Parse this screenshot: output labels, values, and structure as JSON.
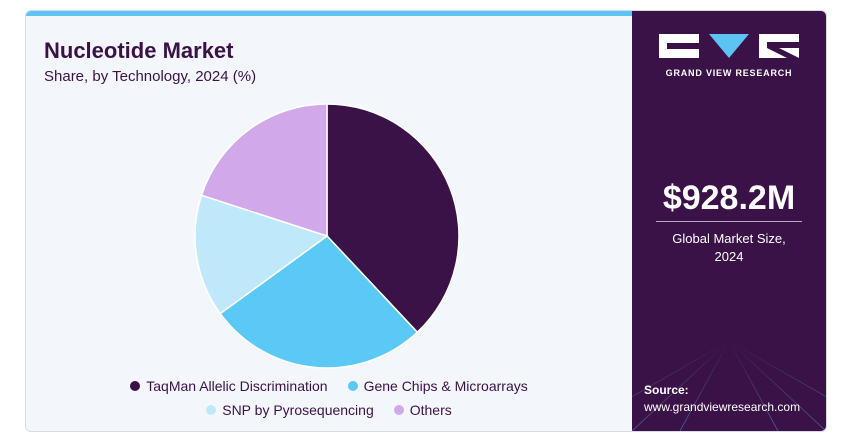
{
  "title": "Nucleotide Market",
  "subtitle": "Share, by Technology, 2024 (%)",
  "brand": {
    "name": "GRAND VIEW RESEARCH",
    "accent_color": "#5cc3f2",
    "panel_color": "#3a1248"
  },
  "market": {
    "value": "$928.2M",
    "label_line1": "Global Market Size,",
    "label_line2": "2024"
  },
  "source": {
    "label": "Source:",
    "url": "www.grandviewresearch.com"
  },
  "chart_data": {
    "type": "pie",
    "title": "Nucleotide Market",
    "subtitle": "Share, by Technology, 2024 (%)",
    "categories": [
      "TaqMan Allelic Discrimination",
      "Gene Chips & Microarrays",
      "SNP by Pyrosequencing",
      "Others"
    ],
    "values": [
      38,
      27,
      15,
      20
    ],
    "colors": [
      "#3a1248",
      "#5bc9f5",
      "#bfe9fa",
      "#d1a9ea"
    ],
    "start_angle": "12 o'clock",
    "direction": "clockwise",
    "legend_placement": "bottom-center"
  }
}
